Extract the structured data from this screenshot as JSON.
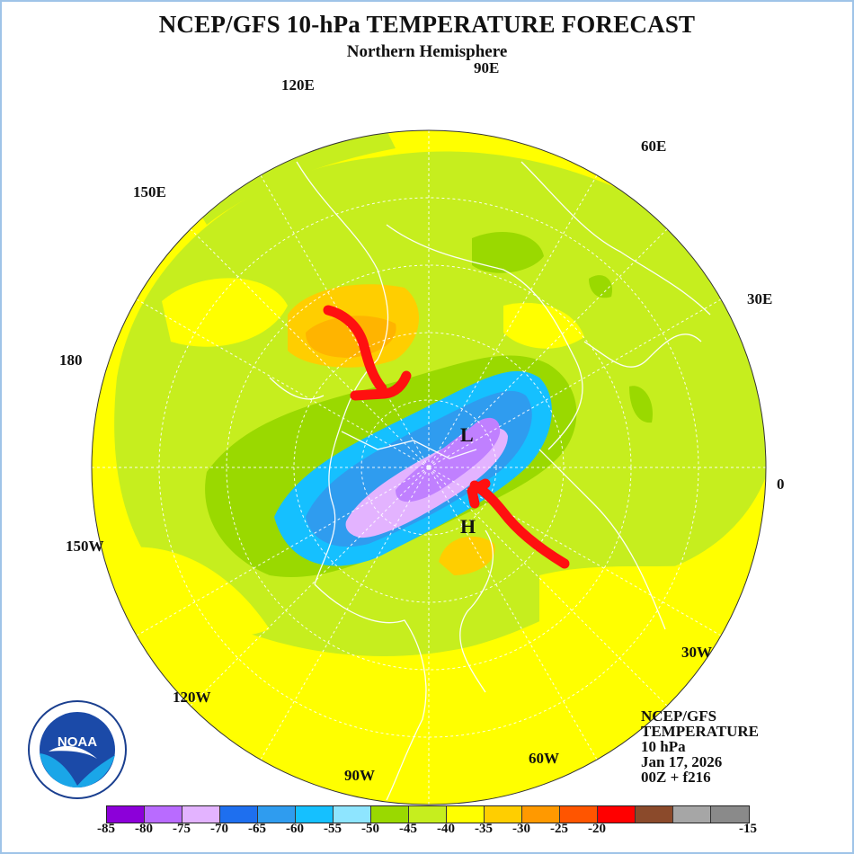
{
  "title": "NCEP/GFS 10-hPa TEMPERATURE FORECAST",
  "subtitle": "Northern Hemisphere",
  "longitude_labels": [
    "90E",
    "120E",
    "60E",
    "150E",
    "30E",
    "180",
    "0",
    "150W",
    "30W",
    "120W",
    "90W",
    "60W"
  ],
  "pressure_centers": {
    "low": "L",
    "high": "H"
  },
  "info_block": {
    "model": "NCEP/GFS",
    "field": "TEMPERATURE",
    "level": "10 hPa",
    "date": "Jan 17, 2026",
    "cycle": "00Z + f216"
  },
  "logo": {
    "text": "NOAA"
  },
  "colorbar": {
    "colors": [
      "#8c00d9",
      "#b96bff",
      "#e3b3ff",
      "#1e6fef",
      "#2f9cef",
      "#15c0ff",
      "#8ee5ff",
      "#9ad900",
      "#c6ee1e",
      "#ffff00",
      "#ffce00",
      "#ff9900",
      "#ff5500",
      "#ff0000",
      "#8b4a2b",
      "#a6a6a6",
      "#8a8a8a"
    ],
    "labels": [
      "-85",
      "-80",
      "-75",
      "-70",
      "-65",
      "-60",
      "-55",
      "-50",
      "-45",
      "-40",
      "-35",
      "-30",
      "-25",
      "-20",
      "-15"
    ]
  },
  "map_colors": {
    "yellow": "#ffff00",
    "light_green": "#c6ee1e",
    "green": "#9ad900",
    "cyan": "#15c0ff",
    "blue": "#2f9cef",
    "light_purple": "#e3b3ff",
    "purple": "#c080ff",
    "orange": "#ffb400",
    "annotation_red": "#ff1010"
  }
}
